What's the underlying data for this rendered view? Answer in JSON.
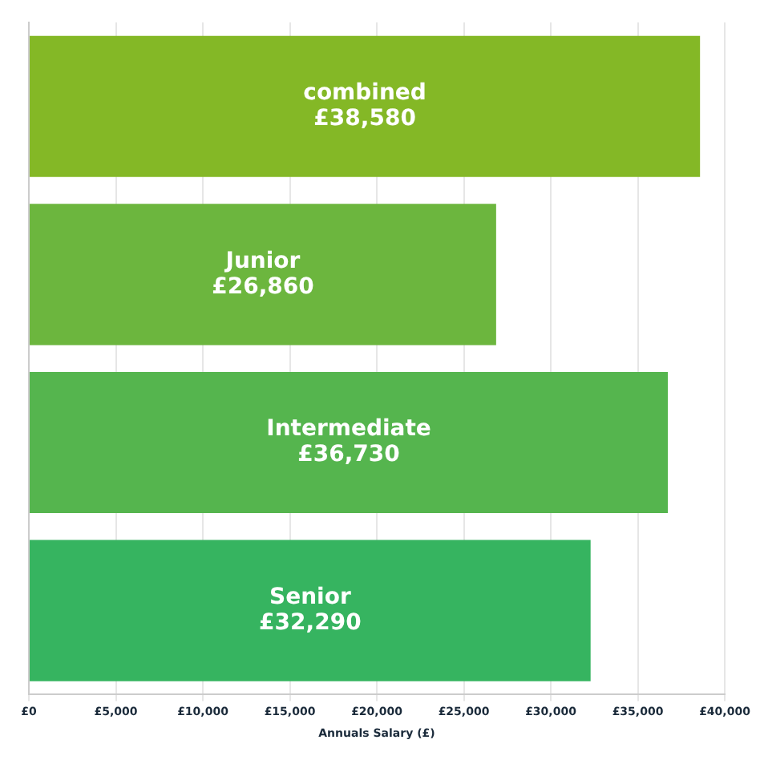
{
  "chart_data": {
    "type": "bar",
    "orientation": "horizontal",
    "xlabel": "Annuals Salary (£)",
    "categories": [
      "combined",
      "Junior",
      "Intermediate",
      "Senior"
    ],
    "values": [
      38580,
      26860,
      36730,
      32290
    ],
    "value_labels": [
      "£38,580",
      "£26,860",
      "£36,730",
      "£32,290"
    ],
    "colors": [
      "#84b826",
      "#6cb63e",
      "#55b54e",
      "#36b460"
    ],
    "xlim": [
      0,
      40000
    ],
    "xticks": [
      {
        "value": 0,
        "label": "£0"
      },
      {
        "value": 5000,
        "label": "£5,000"
      },
      {
        "value": 10000,
        "label": "£10,000"
      },
      {
        "value": 15000,
        "label": "£15,000"
      },
      {
        "value": 20000,
        "label": "£20,000"
      },
      {
        "value": 25000,
        "label": "£25,000"
      },
      {
        "value": 30000,
        "label": "£30,000"
      },
      {
        "value": 35000,
        "label": "£35,000"
      },
      {
        "value": 40000,
        "label": "£40,000"
      }
    ],
    "grid": "x",
    "legend": false
  }
}
